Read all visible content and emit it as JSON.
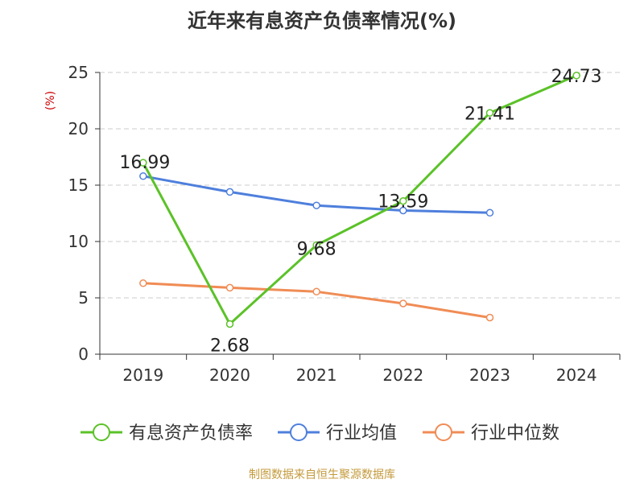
{
  "chart_data": {
    "type": "line",
    "title": "近年来有息资产负债率情况(%)",
    "ylabel": "(%)",
    "xlabel": "",
    "categories": [
      "2019",
      "2020",
      "2021",
      "2022",
      "2023",
      "2024"
    ],
    "ylim": [
      0,
      25
    ],
    "yticks": [
      0,
      5,
      10,
      15,
      20,
      25
    ],
    "grid": true,
    "legend_position": "bottom",
    "series": [
      {
        "name": "有息资产负债率",
        "color": "#5bc228",
        "values": [
          16.99,
          2.68,
          9.68,
          13.59,
          21.41,
          24.73
        ],
        "labels": [
          "16.99",
          "2.68",
          "9.68",
          "13.59",
          "21.41",
          "24.73"
        ]
      },
      {
        "name": "行业均值",
        "color": "#4e7fdc",
        "values": [
          15.8,
          14.4,
          13.2,
          12.75,
          12.55,
          null
        ]
      },
      {
        "name": "行业中位数",
        "color": "#f08c55",
        "values": [
          6.3,
          5.9,
          5.55,
          4.5,
          3.25,
          null
        ]
      }
    ],
    "source": "制图数据来自恒生聚源数据库"
  }
}
